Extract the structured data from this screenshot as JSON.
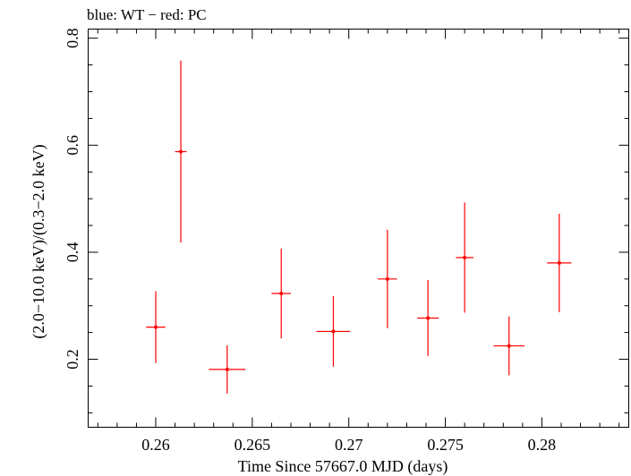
{
  "chart_data": {
    "type": "scatter",
    "title": "blue: WT − red: PC",
    "xlabel": "Time Since 57667.0 MJD (days)",
    "ylabel": "(2.0−10.0 keV)/(0.3−2.0 keV)",
    "xlim": [
      0.2565,
      0.2845
    ],
    "ylim": [
      0.073,
      0.817
    ],
    "xticks": [
      0.26,
      0.265,
      0.27,
      0.275,
      0.28
    ],
    "xtick_labels": [
      "0.26",
      "0.265",
      "0.27",
      "0.275",
      "0.28"
    ],
    "yticks": [
      0.2,
      0.4,
      0.6,
      0.8
    ],
    "ytick_labels": [
      "0.2",
      "0.4",
      "0.6",
      "0.8"
    ],
    "grid": false,
    "series": [
      {
        "color": "#ff0000",
        "points": [
          {
            "x": 0.26,
            "xerr": 0.0005,
            "y": 0.26,
            "yerr_low": 0.067,
            "yerr_high": 0.067
          },
          {
            "x": 0.2613,
            "xerr": 0.0003,
            "y": 0.588,
            "yerr_low": 0.17,
            "yerr_high": 0.17
          },
          {
            "x": 0.2637,
            "xerr": 0.00095,
            "y": 0.181,
            "yerr_low": 0.045,
            "yerr_high": 0.045
          },
          {
            "x": 0.2665,
            "xerr": 0.0005,
            "y": 0.323,
            "yerr_low": 0.084,
            "yerr_high": 0.084
          },
          {
            "x": 0.2692,
            "xerr": 0.00088,
            "y": 0.252,
            "yerr_low": 0.066,
            "yerr_high": 0.066
          },
          {
            "x": 0.272,
            "xerr": 0.0005,
            "y": 0.35,
            "yerr_low": 0.092,
            "yerr_high": 0.092
          },
          {
            "x": 0.2741,
            "xerr": 0.00055,
            "y": 0.277,
            "yerr_low": 0.071,
            "yerr_high": 0.071
          },
          {
            "x": 0.276,
            "xerr": 0.00045,
            "y": 0.39,
            "yerr_low": 0.103,
            "yerr_high": 0.103
          },
          {
            "x": 0.2783,
            "xerr": 0.0008,
            "y": 0.225,
            "yerr_low": 0.055,
            "yerr_high": 0.055
          },
          {
            "x": 0.2809,
            "xerr": 0.00063,
            "y": 0.38,
            "yerr_low": 0.092,
            "yerr_high": 0.092
          }
        ]
      }
    ]
  }
}
